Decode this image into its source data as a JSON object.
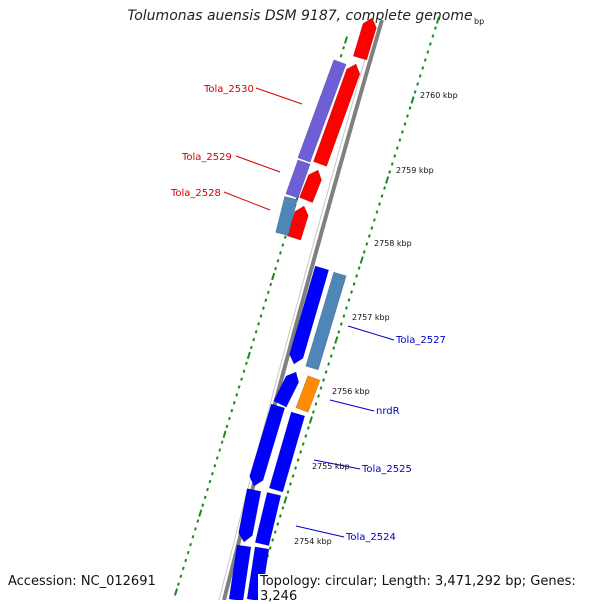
{
  "title": "Tolumonas auensis DSM 9187, complete genome",
  "footer": {
    "accession": "Accession: NC_012691",
    "topology": "Topology: circular; Length: 3,471,292 bp; Genes: 3,246"
  },
  "colors": {
    "forward_cds": "#ff0000",
    "reverse_cds": "#0000ff",
    "trna_like": "#6f5fd6",
    "rrna_like": "#4f86b8",
    "regulator": "#ff8c00",
    "backbone": "#808080",
    "tick": "#1a8a1a"
  },
  "tick_labels": [
    {
      "label": "2760 kbp"
    },
    {
      "label": "2759 kbp"
    },
    {
      "label": "2758 kbp"
    },
    {
      "label": "2757 kbp"
    },
    {
      "label": "2756 kbp"
    },
    {
      "label": "2755 kbp"
    },
    {
      "label": "2754 kbp"
    }
  ],
  "gene_labels": [
    {
      "label": "Tola_2530",
      "strand": "forward"
    },
    {
      "label": "Tola_2529",
      "strand": "forward"
    },
    {
      "label": "Tola_2528",
      "strand": "forward"
    },
    {
      "label": "Tola_2527",
      "strand": "reverse"
    },
    {
      "label": "nrdR",
      "strand": "reverse"
    },
    {
      "label": "Tola_2525",
      "strand": "reverse"
    },
    {
      "label": "Tola_2524",
      "strand": "reverse"
    }
  ],
  "partial_tick_label": "bp"
}
